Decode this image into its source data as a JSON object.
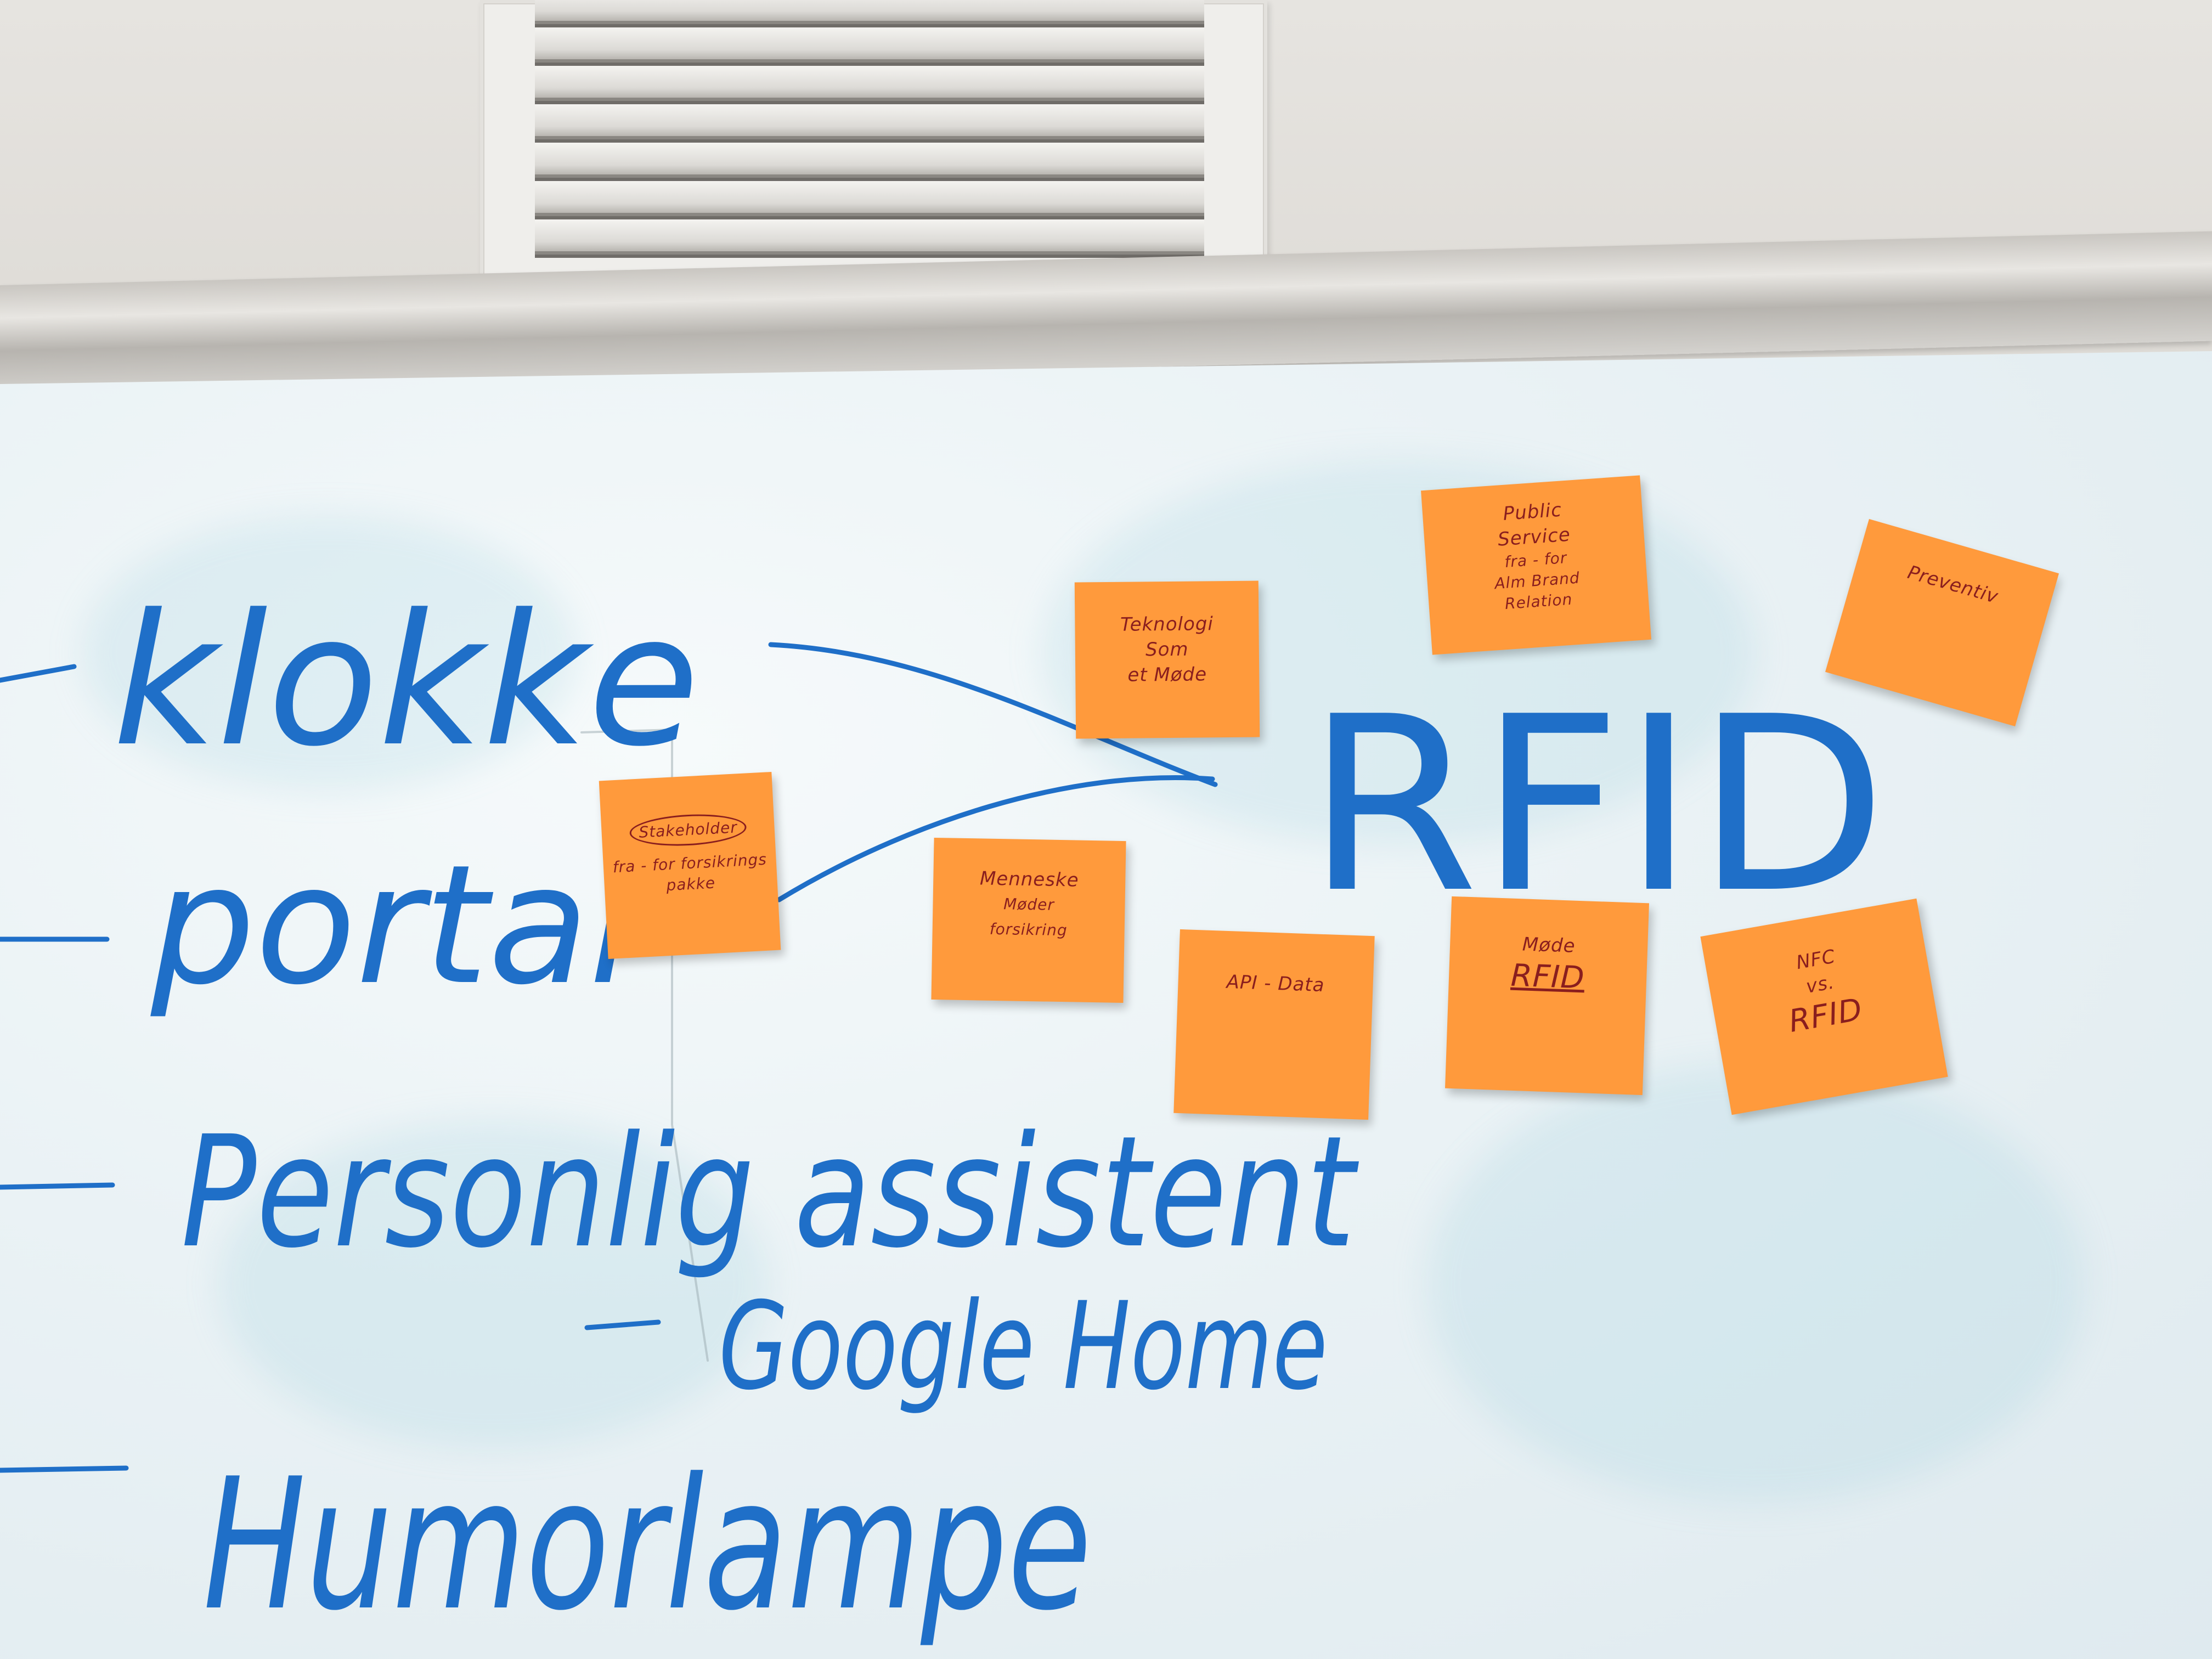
{
  "whiteboard": {
    "list_items": [
      "klokke",
      "portal",
      "Personlig assistent",
      "Google Home",
      "Humorlampe"
    ],
    "center_word": "RFID"
  },
  "sticky_notes": {
    "teknologi": [
      "Teknologi",
      "Som",
      "et Møde"
    ],
    "public_service": [
      "Public",
      "Service",
      "fra - for",
      "Alm Brand",
      "Relation"
    ],
    "preventiv": [
      "Preventiv"
    ],
    "stakeholder": [
      "Stakeholder",
      "fra - for forsikrings",
      "pakke"
    ],
    "menneske": [
      "Menneske",
      "Møder",
      "forsikring"
    ],
    "api": [
      "API - Data"
    ],
    "mode_rfid": [
      "Møde",
      "RFID"
    ],
    "nfc": [
      "NFC",
      "vs.",
      "RFID"
    ]
  },
  "colors": {
    "marker_blue": "#1f6fc8",
    "note_orange": "#ff9a3c",
    "note_ink": "#8a1e1e"
  }
}
